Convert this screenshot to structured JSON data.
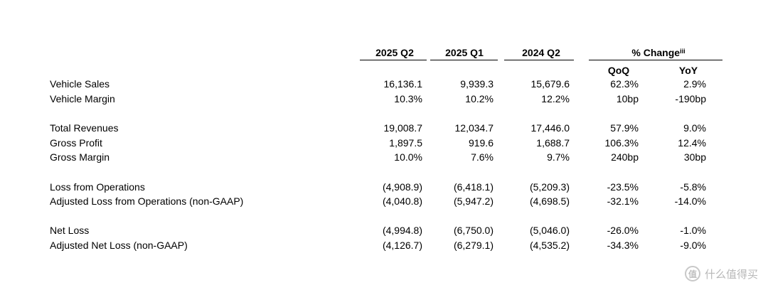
{
  "table": {
    "headers": {
      "col1": "2025 Q2",
      "col2": "2025 Q1",
      "col3": "2024 Q2",
      "pct_change": "% Change",
      "pct_change_sup": "iii",
      "qoq": "QoQ",
      "yoy": "YoY"
    },
    "rows": [
      {
        "label": "Vehicle Sales",
        "v1": "16,136.1",
        "v2": "9,939.3",
        "v3": "15,679.6",
        "qoq": "62.3%",
        "yoy": "2.9%"
      },
      {
        "label": "Vehicle Margin",
        "v1": "10.3%",
        "v2": "10.2%",
        "v3": "12.2%",
        "qoq": "10bp",
        "yoy": "-190bp"
      },
      {
        "label": "Total Revenues",
        "v1": "19,008.7",
        "v2": "12,034.7",
        "v3": "17,446.0",
        "qoq": "57.9%",
        "yoy": "9.0%"
      },
      {
        "label": "Gross Profit",
        "v1": "1,897.5",
        "v2": "919.6",
        "v3": "1,688.7",
        "qoq": "106.3%",
        "yoy": "12.4%"
      },
      {
        "label": "Gross Margin",
        "v1": "10.0%",
        "v2": "7.6%",
        "v3": "9.7%",
        "qoq": "240bp",
        "yoy": "30bp"
      },
      {
        "label": "Loss from Operations",
        "v1": "(4,908.9)",
        "v2": "(6,418.1)",
        "v3": "(5,209.3)",
        "qoq": "-23.5%",
        "yoy": "-5.8%"
      },
      {
        "label": "Adjusted Loss from Operations (non-GAAP)",
        "v1": "(4,040.8)",
        "v2": "(5,947.2)",
        "v3": "(4,698.5)",
        "qoq": "-32.1%",
        "yoy": "-14.0%"
      },
      {
        "label": "Net Loss",
        "v1": "(4,994.8)",
        "v2": "(6,750.0)",
        "v3": "(5,046.0)",
        "qoq": "-26.0%",
        "yoy": "-1.0%"
      },
      {
        "label": "Adjusted Net Loss (non-GAAP)",
        "v1": "(4,126.7)",
        "v2": "(6,279.1)",
        "v3": "(4,535.2)",
        "qoq": "-34.3%",
        "yoy": "-9.0%"
      }
    ]
  },
  "watermark": {
    "icon": "值",
    "text": "什么值得买"
  }
}
